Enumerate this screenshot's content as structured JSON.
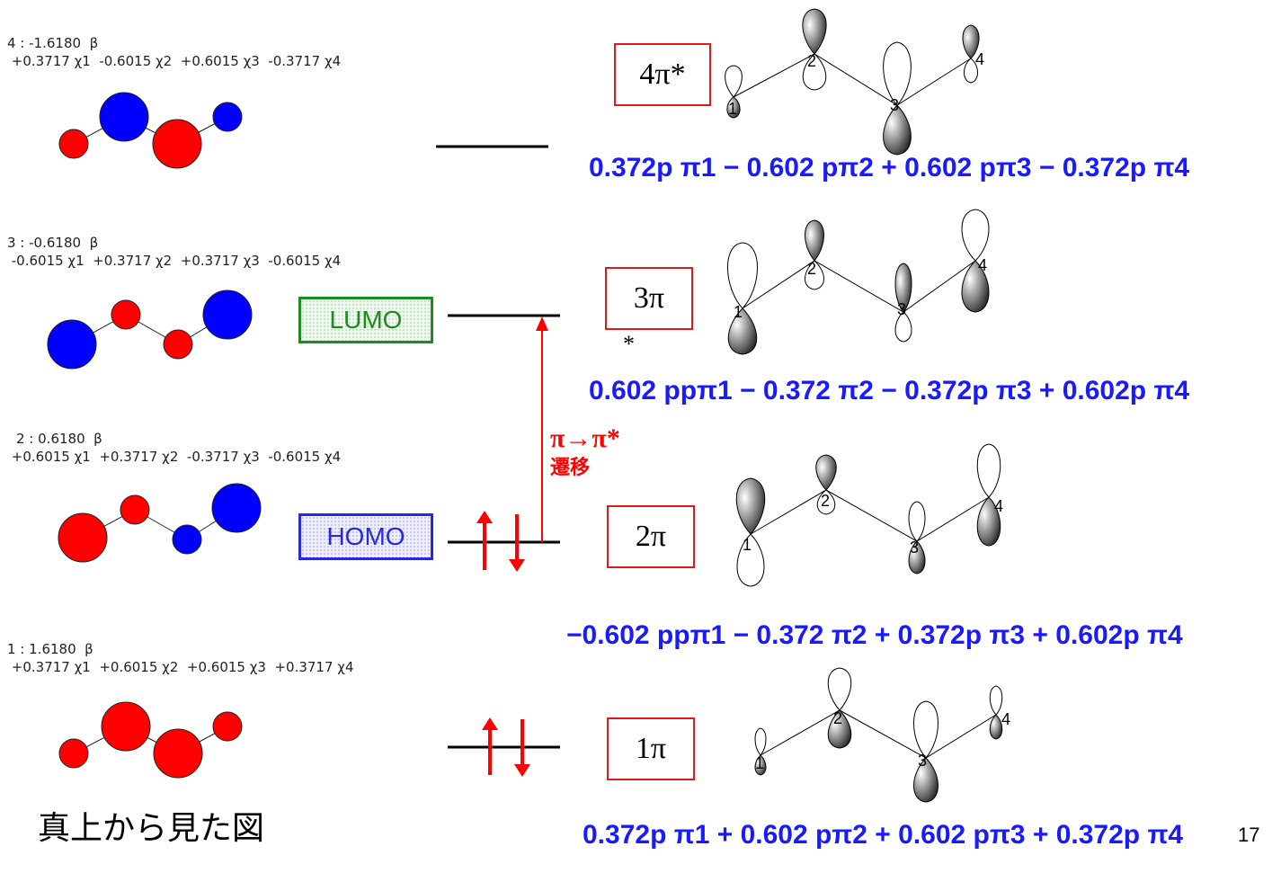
{
  "orbitals": [
    {
      "id": "4",
      "header": "4 : -1.6180  β",
      "coeffs": " +0.3717 χ1  -0.6015 χ2  +0.6015 χ3  -0.3717 χ4",
      "label": "4π*",
      "formula": "0.372p π1 − 0.602 pπ2 + 0.602 pπ3 − 0.372p π4"
    },
    {
      "id": "3",
      "header": "3 : -0.6180  β",
      "coeffs": " -0.6015 χ1  +0.3717 χ2  +0.3717 χ3  -0.6015 χ4",
      "label": "3π",
      "label_extra": "*",
      "formula": "0.602 ppπ1 − 0.372 π2 − 0.372p π3 + 0.602p π4"
    },
    {
      "id": "2",
      "header": "2 : 0.6180  β",
      "coeffs": " +0.6015 χ1  +0.3717 χ2  -0.3717 χ3  -0.6015 χ4",
      "label": "2π",
      "formula": "−0.602 ppπ1 − 0.372 π2 + 0.372p π3 + 0.602p π4"
    },
    {
      "id": "1",
      "header": "1 : 1.6180  β",
      "coeffs": " +0.3717 χ1  +0.6015 χ2  +0.6015 χ3  +0.3717 χ4",
      "label": "1π",
      "formula": "0.372p π1 + 0.602 pπ2 + 0.602 pπ3 + 0.372p π4"
    }
  ],
  "tags": {
    "lumo": "LUMO",
    "homo": "HOMO"
  },
  "transition": {
    "line1": "π→π*",
    "line2": "遷移"
  },
  "atom_numbers": [
    "1",
    "2",
    "3",
    "4"
  ],
  "caption": "真上から見た図",
  "page_number": "17",
  "colors": {
    "positive_lobe": "#ff0000",
    "negative_lobe": "#0000ff",
    "formula": "#1a1aff",
    "box_border": "#e01a1a",
    "lumo": "#1f8a1f",
    "homo": "#2828e0",
    "arrow": "#ff0000"
  }
}
